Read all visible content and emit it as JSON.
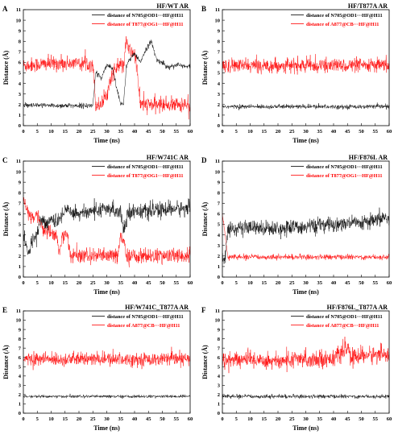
{
  "figure": {
    "shared_axes": {
      "xlabel": "Time (ns)",
      "ylabel": "Distance (Å)",
      "xlim": [
        0,
        60
      ],
      "ylim": [
        0,
        11
      ],
      "xticks": [
        0,
        5,
        10,
        15,
        20,
        25,
        30,
        35,
        40,
        45,
        50,
        55,
        60
      ],
      "yticks": [
        0,
        1,
        2,
        3,
        4,
        5,
        6,
        7,
        8,
        9,
        10,
        11
      ]
    },
    "colors": {
      "black_series": "#000000",
      "red_series": "#ff0000"
    }
  },
  "chart_data": [
    {
      "type": "line",
      "panel_letter": "A",
      "title": "HF/WT AR",
      "xlabel": "Time (ns)",
      "ylabel": "Distance (Å)",
      "xlim": [
        0,
        60
      ],
      "ylim": [
        0,
        11
      ],
      "legend_position": "top-right",
      "series": [
        {
          "name": "distance of N705@OD1···HF@H11",
          "color": "#000000",
          "x": [
            0,
            10,
            20,
            25,
            26,
            28,
            30,
            32,
            35,
            36,
            37,
            38,
            40,
            42,
            44,
            46,
            48,
            50,
            52,
            55,
            58,
            60
          ],
          "values": [
            1.9,
            1.9,
            1.9,
            1.9,
            5.0,
            4.5,
            5.8,
            5.5,
            2.0,
            2.0,
            5.5,
            6.2,
            6.8,
            6.0,
            7.2,
            8.0,
            6.2,
            6.0,
            5.5,
            5.8,
            5.6,
            5.6
          ]
        },
        {
          "name": "distance of T877@OG1···HF@H11",
          "color": "#ff0000",
          "x": [
            0,
            10,
            20,
            25,
            26,
            28,
            30,
            32,
            35,
            36,
            37,
            38,
            40,
            41,
            42,
            44,
            46,
            50,
            55,
            60
          ],
          "values": [
            5.7,
            5.9,
            5.9,
            5.9,
            2.0,
            2.0,
            3.0,
            5.0,
            5.8,
            5.5,
            8.0,
            7.2,
            6.8,
            5.2,
            2.0,
            2.0,
            2.0,
            2.0,
            2.0,
            2.0
          ]
        }
      ]
    },
    {
      "type": "line",
      "panel_letter": "B",
      "title": "HF/T877A AR",
      "xlabel": "Time (ns)",
      "ylabel": "Distance (Å)",
      "xlim": [
        0,
        60
      ],
      "ylim": [
        0,
        11
      ],
      "legend_position": "top-right",
      "series": [
        {
          "name": "distance of N705@OD1···HF@H11",
          "color": "#000000",
          "x": [
            0,
            60
          ],
          "values": [
            1.8,
            1.8
          ]
        },
        {
          "name": "distance of A877@CB···HF@H11",
          "color": "#ff0000",
          "x": [
            0,
            60
          ],
          "values": [
            5.7,
            5.7
          ]
        }
      ]
    },
    {
      "type": "line",
      "panel_letter": "C",
      "title": "HF/W741C AR",
      "xlabel": "Time (ns)",
      "ylabel": "Distance (Å)",
      "xlim": [
        0,
        60
      ],
      "ylim": [
        0,
        11
      ],
      "legend_position": "top-right",
      "series": [
        {
          "name": "distance of N705@OD1···HF@H11",
          "color": "#000000",
          "x": [
            0,
            2,
            3,
            5,
            6,
            8,
            10,
            12,
            15,
            20,
            25,
            30,
            35,
            36,
            38,
            40,
            45,
            50,
            55,
            60
          ],
          "values": [
            4.0,
            2.0,
            3.5,
            4.0,
            5.5,
            5.0,
            5.5,
            5.0,
            6.5,
            6.0,
            6.3,
            6.4,
            6.3,
            4.5,
            6.2,
            6.3,
            6.2,
            6.4,
            6.5,
            6.5
          ]
        },
        {
          "name": "distance of T877@OG1···HF@H11",
          "color": "#ff0000",
          "x": [
            0,
            1,
            2,
            3,
            5,
            7,
            10,
            12,
            13,
            14,
            16,
            17,
            18,
            20,
            25,
            30,
            34,
            35,
            36,
            37,
            40,
            45,
            50,
            55,
            60
          ],
          "values": [
            7.2,
            6.5,
            6.0,
            5.5,
            6.0,
            4.5,
            4.2,
            4.0,
            2.0,
            4.0,
            3.8,
            2.0,
            2.1,
            2.0,
            2.0,
            2.0,
            2.0,
            4.0,
            3.5,
            2.0,
            2.0,
            2.0,
            2.0,
            2.0,
            2.0
          ]
        }
      ]
    },
    {
      "type": "line",
      "panel_letter": "D",
      "title": "HF/F876L AR",
      "xlabel": "Time (ns)",
      "ylabel": "Distance (Å)",
      "xlim": [
        0,
        60
      ],
      "ylim": [
        0,
        11
      ],
      "legend_position": "top-right",
      "series": [
        {
          "name": "distance of N705@OD1···HF@H11",
          "color": "#000000",
          "x": [
            0,
            1,
            2,
            3,
            10,
            20,
            30,
            40,
            50,
            55,
            58,
            60
          ],
          "values": [
            1.8,
            1.8,
            4.5,
            4.6,
            4.7,
            4.6,
            4.8,
            5.0,
            5.1,
            5.3,
            5.7,
            5.5
          ]
        },
        {
          "name": "distance of T877@OG1···HF@H11",
          "color": "#ff0000",
          "x": [
            0,
            1,
            2,
            10,
            20,
            30,
            40,
            50,
            60
          ],
          "values": [
            6.0,
            4.0,
            1.9,
            1.9,
            1.9,
            1.9,
            1.9,
            1.9,
            1.9
          ]
        }
      ]
    },
    {
      "type": "line",
      "panel_letter": "E",
      "title": "HF/W741C_T877A AR",
      "xlabel": "Time (ns)",
      "ylabel": "Distance (Å)",
      "xlim": [
        0,
        60
      ],
      "ylim": [
        0,
        11
      ],
      "legend_position": "top-right",
      "series": [
        {
          "name": "distance of N705@OD1···HF@H11",
          "color": "#000000",
          "x": [
            0,
            60
          ],
          "values": [
            1.8,
            1.8
          ]
        },
        {
          "name": "distance of A877@CB···HF@H11",
          "color": "#ff0000",
          "x": [
            0,
            60
          ],
          "values": [
            5.8,
            5.8
          ]
        }
      ]
    },
    {
      "type": "line",
      "panel_letter": "F",
      "title": "HF/F876L_T877A AR",
      "xlabel": "Time (ns)",
      "ylabel": "Distance (Å)",
      "xlim": [
        0,
        60
      ],
      "ylim": [
        0,
        11
      ],
      "legend_position": "top-right",
      "series": [
        {
          "name": "distance of N705@OD1···HF@H11",
          "color": "#000000",
          "x": [
            0,
            60
          ],
          "values": [
            1.8,
            1.8
          ]
        },
        {
          "name": "distance of A877@CB···HF@H11",
          "color": "#ff0000",
          "x": [
            0,
            10,
            20,
            30,
            40,
            45,
            46,
            50,
            55,
            60
          ],
          "values": [
            5.7,
            5.8,
            5.6,
            5.8,
            5.9,
            7.0,
            6.0,
            6.2,
            6.3,
            6.4
          ]
        }
      ]
    }
  ]
}
